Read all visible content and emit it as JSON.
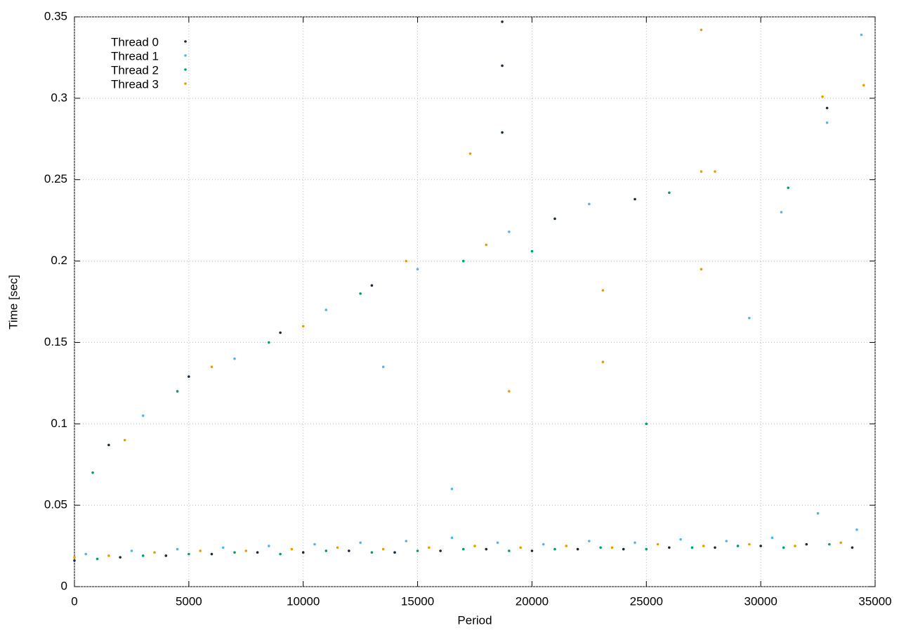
{
  "chart_data": {
    "type": "scatter",
    "x_label": "Period",
    "y_label": "Time [sec]",
    "xlim": [
      0,
      35000
    ],
    "xticks": [
      0,
      5000,
      10000,
      15000,
      20000,
      25000,
      30000,
      35000
    ],
    "ylim": [
      0,
      0.35
    ],
    "yticks": [
      0,
      0.05,
      0.1,
      0.15,
      0.2,
      0.25,
      0.3,
      0.35
    ],
    "grid": true,
    "legend": "top-left",
    "series": [
      {
        "name": "Thread 0",
        "color": "#1a2a3a",
        "x": [
          0,
          2000,
          4000,
          6000,
          8000,
          10000,
          12000,
          14000,
          16000,
          18000,
          20000,
          22000,
          24000,
          26000,
          28000,
          30000,
          32000,
          34000,
          18700,
          18700,
          18700,
          32900,
          1500,
          5000,
          9000,
          13000,
          21000,
          24500
        ],
        "values": [
          0.016,
          0.018,
          0.019,
          0.02,
          0.021,
          0.021,
          0.022,
          0.021,
          0.022,
          0.023,
          0.022,
          0.023,
          0.023,
          0.024,
          0.024,
          0.025,
          0.026,
          0.024,
          0.347,
          0.32,
          0.279,
          0.294,
          0.087,
          0.129,
          0.156,
          0.185,
          0.226,
          0.238
        ]
      },
      {
        "name": "Thread 1",
        "color": "#56b4e9",
        "x": [
          500,
          2500,
          4500,
          6500,
          8500,
          10500,
          12500,
          14500,
          16500,
          18500,
          20500,
          22500,
          24500,
          26500,
          28500,
          30500,
          32500,
          34200,
          34400,
          32900,
          30900,
          3000,
          7000,
          11000,
          15000,
          19000,
          22500,
          29500,
          13500,
          16500
        ],
        "values": [
          0.02,
          0.022,
          0.023,
          0.024,
          0.025,
          0.026,
          0.027,
          0.028,
          0.03,
          0.027,
          0.026,
          0.028,
          0.027,
          0.029,
          0.028,
          0.03,
          0.045,
          0.035,
          0.339,
          0.285,
          0.23,
          0.105,
          0.14,
          0.17,
          0.195,
          0.218,
          0.235,
          0.165,
          0.135,
          0.06
        ]
      },
      {
        "name": "Thread 2",
        "color": "#009e73",
        "x": [
          1000,
          3000,
          5000,
          7000,
          9000,
          11000,
          13000,
          15000,
          17000,
          19000,
          21000,
          23000,
          25000,
          27000,
          29000,
          31000,
          33000,
          800,
          4500,
          8500,
          12500,
          17000,
          20000,
          26000,
          31200,
          25000
        ],
        "values": [
          0.017,
          0.019,
          0.02,
          0.021,
          0.02,
          0.022,
          0.021,
          0.022,
          0.023,
          0.022,
          0.023,
          0.024,
          0.023,
          0.024,
          0.025,
          0.024,
          0.026,
          0.07,
          0.12,
          0.15,
          0.18,
          0.2,
          0.206,
          0.242,
          0.245,
          0.1
        ]
      },
      {
        "name": "Thread 3",
        "color": "#e69f00",
        "x": [
          0,
          1500,
          3500,
          5500,
          7500,
          9500,
          11500,
          13500,
          15500,
          17500,
          19500,
          21500,
          23500,
          25500,
          27500,
          29500,
          31500,
          33500,
          27400,
          17300,
          32700,
          34500,
          27400,
          27400,
          23100,
          28000,
          2200,
          6000,
          10000,
          14500,
          18000,
          19000,
          23100
        ],
        "values": [
          0.018,
          0.019,
          0.021,
          0.022,
          0.022,
          0.023,
          0.024,
          0.023,
          0.024,
          0.025,
          0.024,
          0.025,
          0.024,
          0.026,
          0.025,
          0.026,
          0.025,
          0.027,
          0.342,
          0.266,
          0.301,
          0.308,
          0.255,
          0.195,
          0.182,
          0.255,
          0.09,
          0.135,
          0.16,
          0.2,
          0.21,
          0.12,
          0.138
        ]
      }
    ]
  }
}
